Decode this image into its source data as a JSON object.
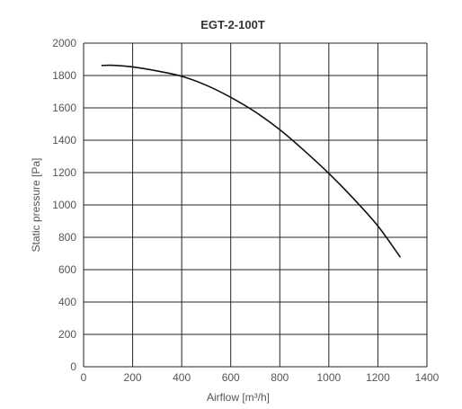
{
  "chart_data": {
    "type": "line",
    "title": "EGT-2-100T",
    "xlabel": "Airflow [m³/h]",
    "ylabel": "Static pressure [Pa]",
    "xlim": [
      0,
      1400
    ],
    "ylim": [
      0,
      2000
    ],
    "xticks": [
      0,
      200,
      400,
      600,
      800,
      1000,
      1200,
      1400
    ],
    "yticks": [
      0,
      200,
      400,
      600,
      800,
      1000,
      1200,
      1400,
      1600,
      1800,
      2000
    ],
    "grid": true,
    "series": [
      {
        "color": "#111111",
        "points": [
          [
            75,
            1862
          ],
          [
            120,
            1863
          ],
          [
            200,
            1853
          ],
          [
            300,
            1828
          ],
          [
            400,
            1795
          ],
          [
            500,
            1740
          ],
          [
            600,
            1665
          ],
          [
            700,
            1575
          ],
          [
            800,
            1465
          ],
          [
            900,
            1335
          ],
          [
            1000,
            1195
          ],
          [
            1100,
            1040
          ],
          [
            1200,
            870
          ],
          [
            1290,
            680
          ]
        ]
      }
    ]
  }
}
